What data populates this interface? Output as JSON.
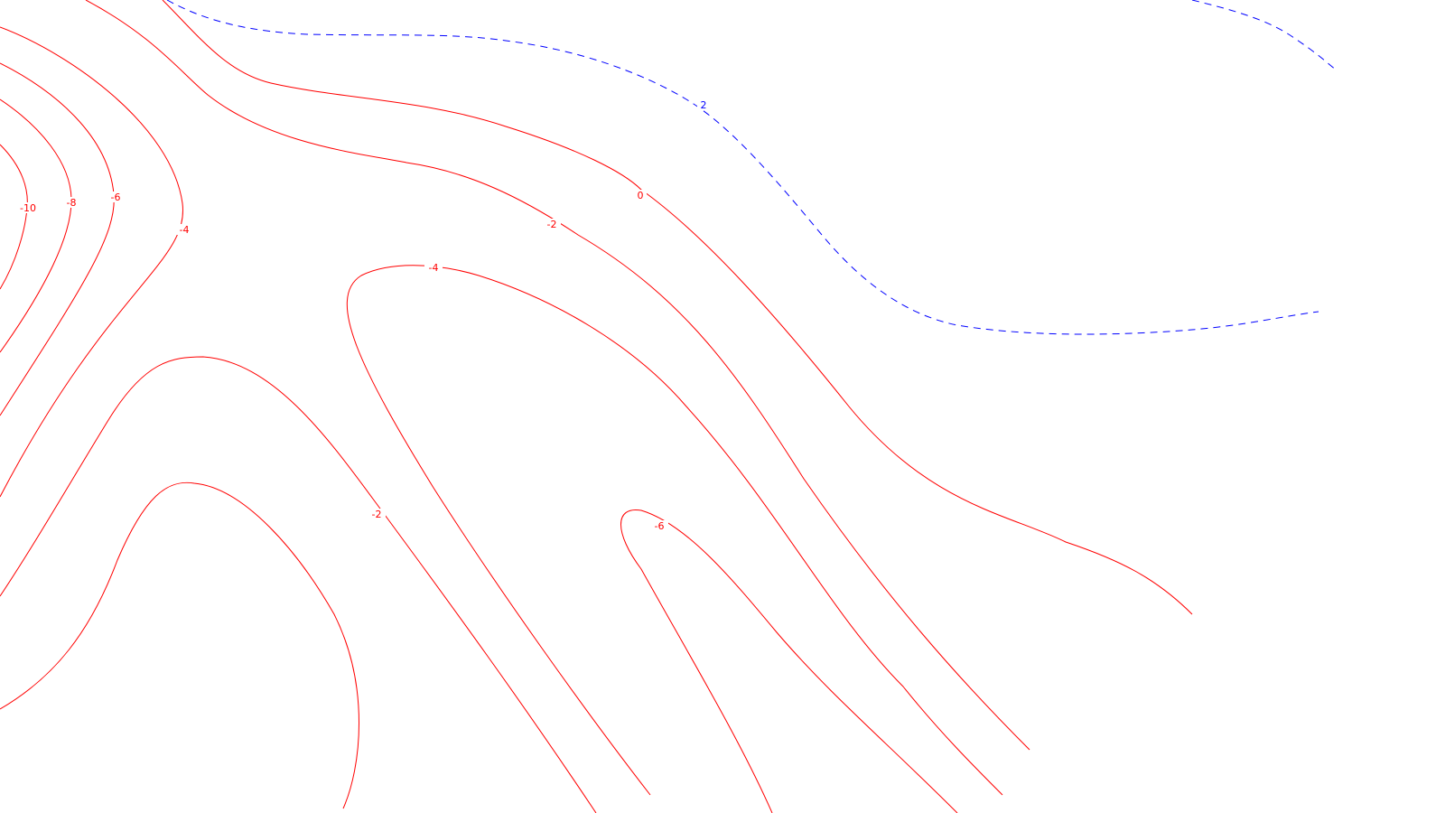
{
  "colors": {
    "background": "#ffffff",
    "negative_contour": "#ff0000",
    "zero_contour": "#ff0000",
    "positive_contour": "#0000ff"
  },
  "styles": {
    "negative_and_zero": "solid",
    "positive": "dashed"
  },
  "contour_labels": {
    "upper_left_1": "-10",
    "upper_left_2": "-8",
    "upper_left_3": "-6",
    "upper_left_4": "-4",
    "middle_1": "-2",
    "middle_2": "0",
    "blue_top": "2",
    "inner_upper": "-4",
    "inner_lower_left": "-2",
    "inner_lower_right": "-6"
  }
}
